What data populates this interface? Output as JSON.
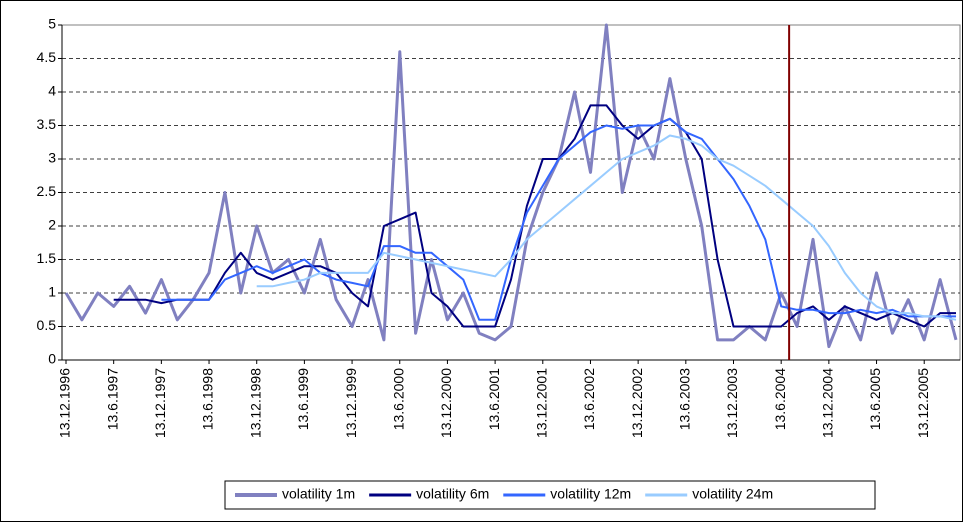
{
  "chart_data": {
    "type": "line",
    "categories": [
      "13.12.1996",
      null,
      null,
      "13.6.1997",
      null,
      null,
      "13.12.1997",
      null,
      null,
      "13.6.1998",
      null,
      null,
      "13.12.1998",
      null,
      null,
      "13.6.1999",
      null,
      null,
      "13.12.1999",
      null,
      null,
      "13.6.2000",
      null,
      null,
      "13.12.2000",
      null,
      null,
      "13.6.2001",
      null,
      null,
      "13.12.2001",
      null,
      null,
      "13.6.2002",
      null,
      null,
      "13.12.2002",
      null,
      null,
      "13.6.2003",
      null,
      null,
      "13.12.2003",
      null,
      null,
      "13.6.2004",
      null,
      null,
      "13.12.2004",
      null,
      null,
      "13.6.2005",
      null,
      null,
      "13.12.2005",
      null,
      null
    ],
    "series": [
      {
        "name": "volatility 1m",
        "color": "#8080c0",
        "width": 3,
        "values": [
          1.0,
          0.6,
          1.0,
          0.8,
          1.1,
          0.7,
          1.2,
          0.6,
          0.9,
          1.3,
          2.5,
          1.0,
          2.0,
          1.3,
          1.5,
          1.0,
          1.8,
          0.9,
          0.5,
          1.2,
          0.3,
          4.6,
          0.4,
          1.5,
          0.6,
          1.0,
          0.4,
          0.3,
          0.5,
          1.8,
          2.5,
          3.0,
          4.0,
          2.8,
          5.0,
          2.5,
          3.5,
          3.0,
          4.2,
          3.0,
          2.0,
          0.3,
          0.3,
          0.5,
          0.3,
          1.0,
          0.5,
          1.8,
          0.2,
          0.8,
          0.3,
          1.3,
          0.4,
          0.9,
          0.3,
          1.2,
          0.3
        ]
      },
      {
        "name": "volatility 6m",
        "color": "#000080",
        "width": 2,
        "values": [
          null,
          null,
          null,
          0.9,
          0.9,
          0.9,
          0.85,
          0.9,
          0.9,
          0.9,
          1.3,
          1.6,
          1.3,
          1.2,
          1.3,
          1.4,
          1.4,
          1.3,
          1.0,
          0.8,
          2.0,
          2.1,
          2.2,
          1.0,
          0.8,
          0.5,
          0.5,
          0.5,
          1.2,
          2.3,
          3.0,
          3.0,
          3.3,
          3.8,
          3.8,
          3.5,
          3.3,
          3.5,
          3.6,
          3.4,
          3.0,
          1.5,
          0.5,
          0.5,
          0.5,
          0.5,
          0.7,
          0.8,
          0.6,
          0.8,
          0.7,
          0.6,
          0.7,
          0.6,
          0.5,
          0.7,
          0.7
        ]
      },
      {
        "name": "volatility 12m",
        "color": "#3366ff",
        "width": 2,
        "values": [
          null,
          null,
          null,
          null,
          null,
          null,
          0.9,
          0.9,
          0.9,
          0.9,
          1.2,
          1.3,
          1.4,
          1.3,
          1.4,
          1.5,
          1.3,
          1.2,
          1.15,
          1.1,
          1.7,
          1.7,
          1.6,
          1.6,
          1.4,
          1.2,
          0.6,
          0.6,
          1.5,
          2.2,
          2.6,
          3.0,
          3.2,
          3.4,
          3.5,
          3.45,
          3.5,
          3.5,
          3.6,
          3.4,
          3.3,
          3.0,
          2.7,
          2.3,
          1.8,
          0.8,
          0.75,
          0.75,
          0.7,
          0.7,
          0.75,
          0.7,
          0.75,
          0.65,
          0.65,
          0.65,
          0.65
        ]
      },
      {
        "name": "volatility 24m",
        "color": "#99ccff",
        "width": 2,
        "values": [
          null,
          null,
          null,
          null,
          null,
          null,
          null,
          null,
          null,
          null,
          null,
          null,
          1.1,
          1.1,
          1.15,
          1.2,
          1.3,
          1.3,
          1.3,
          1.3,
          1.6,
          1.55,
          1.5,
          1.45,
          1.4,
          1.35,
          1.3,
          1.25,
          1.5,
          1.8,
          2.0,
          2.2,
          2.4,
          2.6,
          2.8,
          3.0,
          3.1,
          3.2,
          3.35,
          3.3,
          3.2,
          3.0,
          2.9,
          2.75,
          2.6,
          2.4,
          2.2,
          2.0,
          1.7,
          1.3,
          1.0,
          0.8,
          0.7,
          0.7,
          0.65,
          0.65,
          0.6
        ]
      }
    ],
    "ylim": [
      0,
      5
    ],
    "yticks": [
      0,
      0.5,
      1,
      1.5,
      2,
      2.5,
      3,
      3.5,
      4,
      4.5,
      5
    ],
    "grid": true,
    "reference_line": {
      "category_index": 45.5,
      "color": "#800000"
    },
    "legend": "bottom"
  }
}
